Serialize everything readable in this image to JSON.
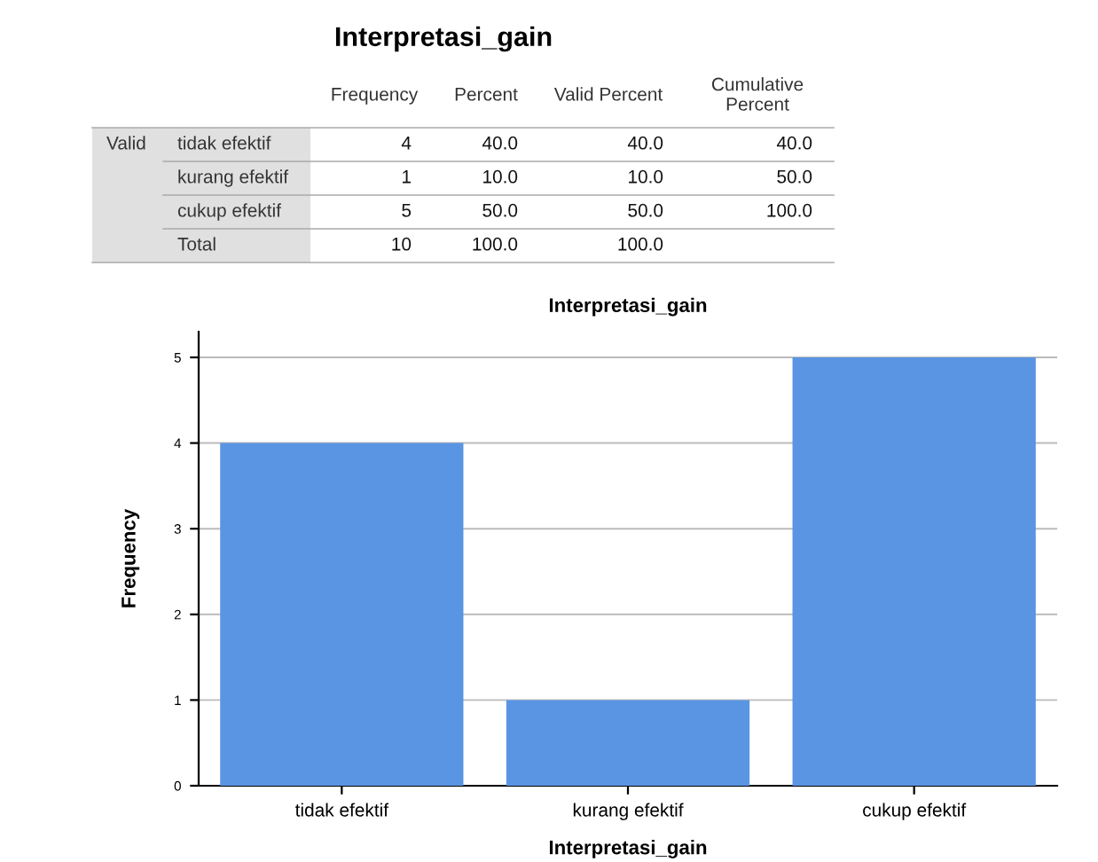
{
  "chart_data": [
    {
      "type": "other",
      "title": "Interpretasi_gain",
      "categories": [
        null,
        null,
        "Frequency",
        "Percent",
        "Valid Percent",
        "Cumulative Percent"
      ],
      "cell_labels": [
        [
          "Valid",
          "tidak efektif",
          "4",
          "40.0",
          "40.0",
          "40.0"
        ],
        [
          null,
          "kurang efektif",
          "1",
          "10.0",
          "10.0",
          "50.0"
        ],
        [
          null,
          "cukup efektif",
          "5",
          "50.0",
          "50.0",
          "100.0"
        ],
        [
          null,
          "Total",
          "10",
          "100.0",
          "100.0",
          null
        ]
      ]
    },
    {
      "type": "bar",
      "title": "Interpretasi_gain",
      "xlabel": "Interpretasi_gain",
      "ylabel": "Frequency",
      "categories": [
        "tidak efektif",
        "kurang efektif",
        "cukup efektif"
      ],
      "values": [
        4,
        1,
        5
      ],
      "color": "#5a95e3",
      "ylim": [
        0,
        5.3
      ],
      "yticks": [
        0,
        1,
        2,
        3,
        4,
        5
      ],
      "grid": "y"
    }
  ]
}
